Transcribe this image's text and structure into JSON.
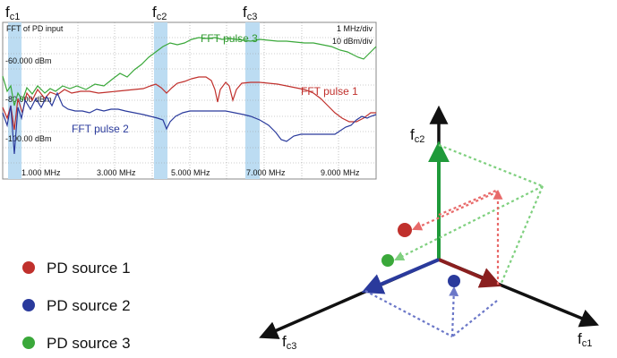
{
  "fft_plot": {
    "title": "FFT of PD input",
    "scale_freq": "1 MHz/div",
    "scale_amp": "10 dBm/div",
    "y_ticks": [
      "-60.000 dBm",
      "-80.000 dBm",
      "-100.00 dBm"
    ],
    "x_ticks": [
      "1.000 MHz",
      "3.000 MHz",
      "5.000 MHz",
      "7.000 MHz",
      "9.000 MHz"
    ],
    "series_labels": {
      "pulse1": "FFT pulse 1",
      "pulse2": "FFT pulse 2",
      "pulse3": "FFT pulse 3"
    },
    "band_labels": {
      "fc1": "f",
      "fc1_sub": "c1",
      "fc2": "f",
      "fc2_sub": "c2",
      "fc3": "f",
      "fc3_sub": "c3"
    },
    "colors": {
      "pulse1": "#c0302c",
      "pulse2": "#2a3a9c",
      "pulse3": "#3aa83a",
      "band": "#bcdcf2",
      "grid": "#9a9a9a"
    }
  },
  "axes3d": {
    "labels": {
      "fc1": "f",
      "fc1_sub": "c1",
      "fc2": "f",
      "fc2_sub": "c2",
      "fc3": "f",
      "fc3_sub": "c3"
    }
  },
  "legend": {
    "items": [
      {
        "label": "PD source 1",
        "color": "#c0302c"
      },
      {
        "label": "PD source 2",
        "color": "#2a3a9c"
      },
      {
        "label": "PD source 3",
        "color": "#3aa83a"
      }
    ]
  }
}
